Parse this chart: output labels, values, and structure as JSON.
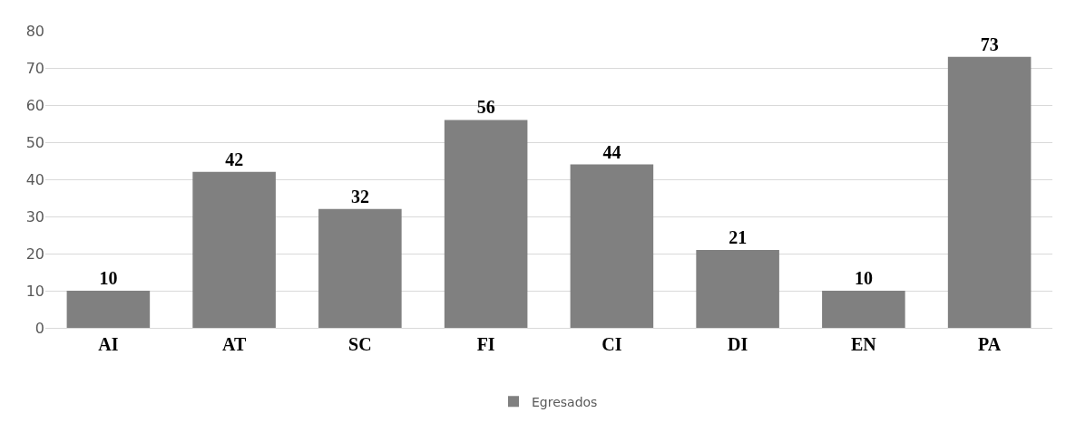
{
  "chart_data": {
    "type": "bar",
    "categories": [
      "AI",
      "AT",
      "SC",
      "FI",
      "CI",
      "DI",
      "EN",
      "PA"
    ],
    "series": [
      {
        "name": "Egresados",
        "color": "#808080",
        "values": [
          10,
          42,
          32,
          56,
          44,
          21,
          10,
          73
        ]
      }
    ],
    "ylim": [
      0,
      80
    ],
    "yticks": [
      0,
      10,
      20,
      30,
      40,
      50,
      60,
      70,
      80
    ],
    "grid": "y",
    "legend": "bottom",
    "data_labels": true
  }
}
